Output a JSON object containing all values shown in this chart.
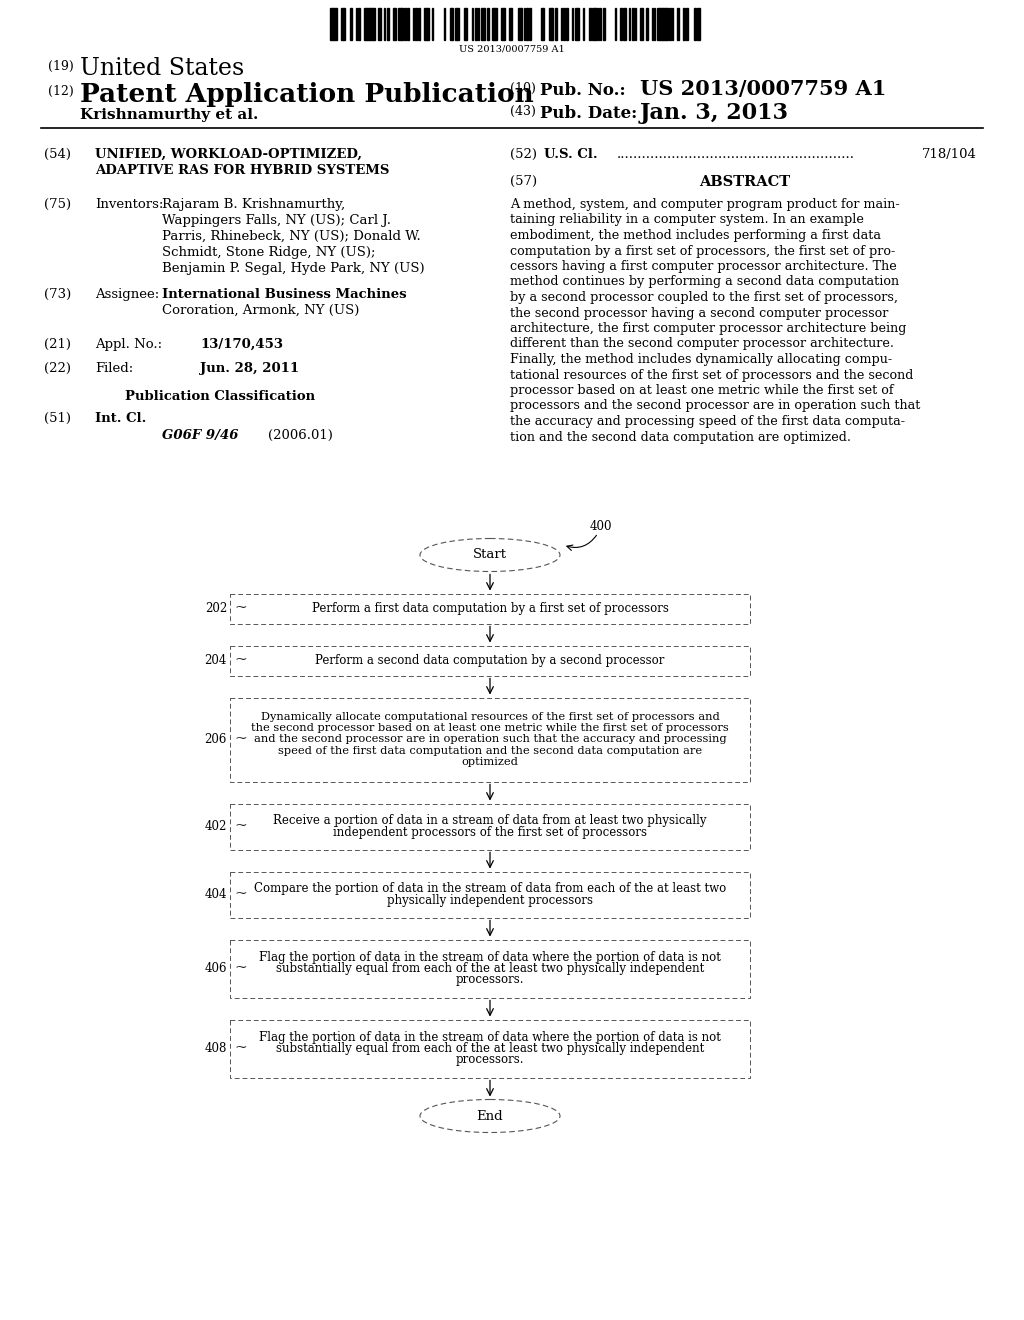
{
  "bg_color": "#ffffff",
  "barcode_text": "US 2013/0007759 A1",
  "header_line1_num": "(19)",
  "header_line1_text": "United States",
  "header_line2_num": "(12)",
  "header_line2_text": "Patent Application Publication",
  "header_right1_num": "(10)",
  "header_right1_label": "Pub. No.:",
  "header_right1_val": "US 2013/0007759 A1",
  "header_right2_num": "(43)",
  "header_right2_label": "Pub. Date:",
  "header_right2_val": "Jan. 3, 2013",
  "header_inventor_line": "Krishnamurthy et al.",
  "field54_num": "(54)",
  "field54_title1": "UNIFIED, WORKLOAD-OPTIMIZED,",
  "field54_title2": "ADAPTIVE RAS FOR HYBRID SYSTEMS",
  "field75_num": "(75)",
  "field75_label": "Inventors:",
  "field75_lines": [
    "Rajaram B. Krishnamurthy,",
    "Wappingers Falls, NY (US); Carl J.",
    "Parris, Rhinebeck, NY (US); Donald W.",
    "Schmidt, Stone Ridge, NY (US);",
    "Benjamin P. Segal, Hyde Park, NY (US)"
  ],
  "field73_num": "(73)",
  "field73_label": "Assignee:",
  "field73_lines": [
    "International Business Machines",
    "Cororation, Armonk, NY (US)"
  ],
  "field21_num": "(21)",
  "field21_label": "Appl. No.:",
  "field21_val": "13/170,453",
  "field22_num": "(22)",
  "field22_label": "Filed:",
  "field22_val": "Jun. 28, 2011",
  "pubclass_label": "Publication Classification",
  "field51_num": "(51)",
  "field51_label": "Int. Cl.",
  "field51_class": "G06F 9/46",
  "field51_year": "(2006.01)",
  "field52_num": "(52)",
  "field52_label": "U.S. Cl.",
  "field52_dots": "........................................................",
  "field52_val": "718/104",
  "field57_num": "(57)",
  "field57_label": "ABSTRACT",
  "abstract_lines": [
    "A method, system, and computer program product for main-",
    "taining reliability in a computer system. In an example",
    "embodiment, the method includes performing a first data",
    "computation by a first set of processors, the first set of pro-",
    "cessors having a first computer processor architecture. The",
    "method continues by performing a second data computation",
    "by a second processor coupled to the first set of processors,",
    "the second processor having a second computer processor",
    "architecture, the first computer processor architecture being",
    "different than the second computer processor architecture.",
    "Finally, the method includes dynamically allocating compu-",
    "tational resources of the first set of processors and the second",
    "processor based on at least one metric while the first set of",
    "processors and the second processor are in operation such that",
    "the accuracy and processing speed of the first data computa-",
    "tion and the second data computation are optimized."
  ],
  "flow_start_label": "Start",
  "flow_end_label": "End",
  "flow_400_label": "400",
  "flow_box202_label": "202",
  "flow_box202_text": "Perform a first data computation by a first set of processors",
  "flow_box204_label": "204",
  "flow_box204_text": "Perform a second data computation by a second processor",
  "flow_box206_label": "206",
  "flow_box206_lines": [
    "Dynamically allocate computational resources of the first set of processors and",
    "the second processor based on at least one metric while the first set of processors",
    "and the second processor are in operation such that the accuracy and processing",
    "speed of the first data computation and the second data computation are",
    "optimized"
  ],
  "flow_box402_label": "402",
  "flow_box402_lines": [
    "Receive a portion of data in a stream of data from at least two physically",
    "independent processors of the first set of processors"
  ],
  "flow_box404_label": "404",
  "flow_box404_lines": [
    "Compare the portion of data in the stream of data from each of the at least two",
    "physically independent processors"
  ],
  "flow_box406_label": "406",
  "flow_box406_lines": [
    "Flag the portion of data in the stream of data where the portion of data is not",
    "substantially equal from each of the at least two physically independent",
    "processors."
  ],
  "flow_box408_label": "408",
  "flow_box408_lines": [
    "Flag the portion of data in the stream of data where the portion of data is not",
    "substantially equal from each of the at least two physically independent",
    "processors."
  ]
}
